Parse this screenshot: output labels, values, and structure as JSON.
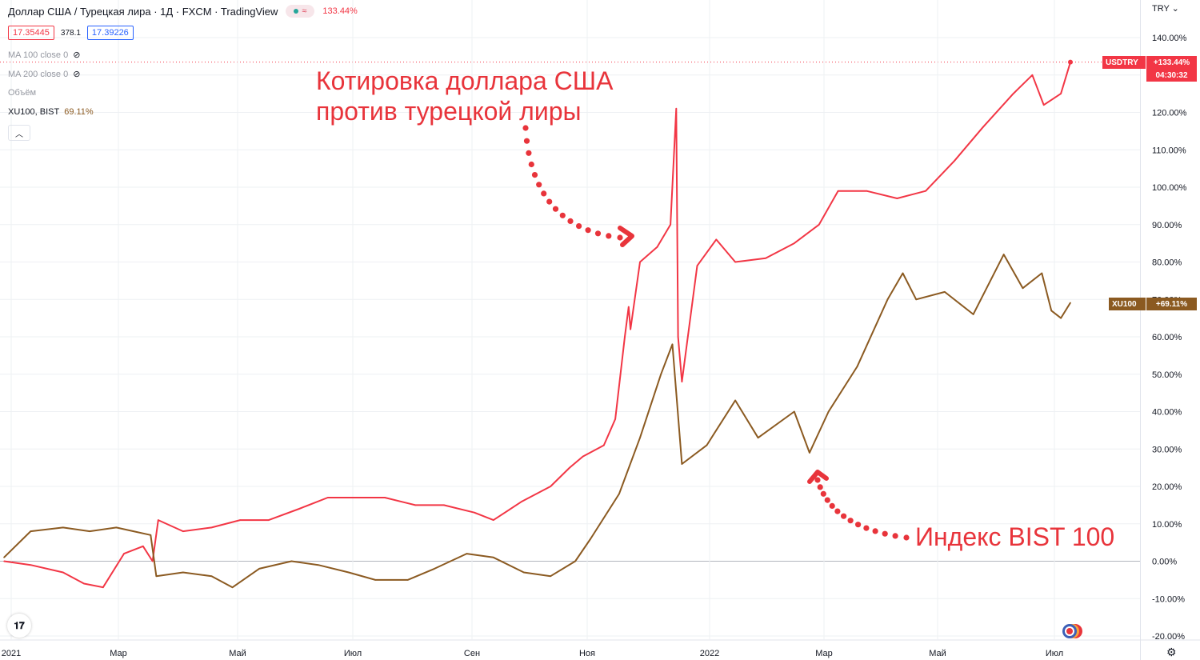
{
  "header": {
    "title": "Доллар США / Турецкая лира · 1Д · FXCM · TradingView",
    "change_pct": "133.44%",
    "bid": "17.35445",
    "spread": "378.1",
    "ask": "17.39226"
  },
  "legend": {
    "ma100": "MA 100 close 0",
    "ma200": "MA 200 close 0",
    "volume": "Объём",
    "compare_symbol": "XU100, BIST",
    "compare_value": "69.11%"
  },
  "currency": "TRY",
  "annotations": {
    "usd_title_line1": "Котировка доллара США",
    "usd_title_line2": "против турецкой лиры",
    "bist_title": "Индекс BIST 100"
  },
  "tags": {
    "usd_symbol": "USDTRY",
    "usd_value": "+133.44%",
    "usd_timer": "04:30:32",
    "xu_symbol": "XU100",
    "xu_value": "+69.11%"
  },
  "colors": {
    "usdtry": "#f23645",
    "xu100": "#8b5a21",
    "annotation": "#e8343b",
    "grid": "#eef0f3"
  },
  "icons": [
    "eye-off-icon",
    "chevron-up-icon",
    "tradingview-logo-icon",
    "gear-icon",
    "chevron-down-icon",
    "flags-icon"
  ],
  "chart_data": {
    "type": "line",
    "y_unit": "%",
    "ylim": [
      -20,
      140
    ],
    "y_ticks": [
      "140.00%",
      "130.00%",
      "120.00%",
      "110.00%",
      "100.00%",
      "90.00%",
      "80.00%",
      "70.00%",
      "60.00%",
      "50.00%",
      "40.00%",
      "30.00%",
      "20.00%",
      "10.00%",
      "0.00%",
      "-10.00%",
      "-20.00%"
    ],
    "x_ticks": [
      "2021",
      "Мар",
      "Май",
      "Июл",
      "Сен",
      "Ноя",
      "2022",
      "Мар",
      "Май",
      "Июл"
    ],
    "grid": true,
    "series": [
      {
        "name": "USDTRY",
        "points": [
          [
            "2021-01-01",
            0
          ],
          [
            "2021-01-15",
            -1
          ],
          [
            "2021-02-01",
            -3
          ],
          [
            "2021-02-12",
            -6
          ],
          [
            "2021-02-22",
            -7
          ],
          [
            "2021-03-05",
            2
          ],
          [
            "2021-03-15",
            4
          ],
          [
            "2021-03-20",
            0
          ],
          [
            "2021-03-23",
            11
          ],
          [
            "2021-04-05",
            8
          ],
          [
            "2021-04-20",
            9
          ],
          [
            "2021-05-05",
            11
          ],
          [
            "2021-05-20",
            11
          ],
          [
            "2021-06-05",
            14
          ],
          [
            "2021-06-20",
            17
          ],
          [
            "2021-07-05",
            17
          ],
          [
            "2021-07-20",
            17
          ],
          [
            "2021-08-05",
            15
          ],
          [
            "2021-08-20",
            15
          ],
          [
            "2021-09-05",
            13
          ],
          [
            "2021-09-15",
            11
          ],
          [
            "2021-09-30",
            16
          ],
          [
            "2021-10-15",
            20
          ],
          [
            "2021-10-25",
            25
          ],
          [
            "2021-11-01",
            28
          ],
          [
            "2021-11-12",
            31
          ],
          [
            "2021-11-18",
            38
          ],
          [
            "2021-11-23",
            60
          ],
          [
            "2021-11-25",
            68
          ],
          [
            "2021-11-26",
            62
          ],
          [
            "2021-12-01",
            80
          ],
          [
            "2021-12-10",
            84
          ],
          [
            "2021-12-17",
            90
          ],
          [
            "2021-12-20",
            121
          ],
          [
            "2021-12-21",
            60
          ],
          [
            "2021-12-23",
            48
          ],
          [
            "2021-12-31",
            79
          ],
          [
            "2022-01-10",
            86
          ],
          [
            "2022-01-20",
            80
          ],
          [
            "2022-02-05",
            81
          ],
          [
            "2022-02-20",
            85
          ],
          [
            "2022-03-05",
            90
          ],
          [
            "2022-03-15",
            99
          ],
          [
            "2022-03-30",
            99
          ],
          [
            "2022-04-15",
            97
          ],
          [
            "2022-04-30",
            99
          ],
          [
            "2022-05-15",
            107
          ],
          [
            "2022-05-30",
            116
          ],
          [
            "2022-06-15",
            125
          ],
          [
            "2022-06-25",
            130
          ],
          [
            "2022-07-01",
            122
          ],
          [
            "2022-07-10",
            125
          ],
          [
            "2022-07-15",
            133.44
          ]
        ]
      },
      {
        "name": "XU100",
        "points": [
          [
            "2021-01-01",
            1
          ],
          [
            "2021-01-15",
            8
          ],
          [
            "2021-02-01",
            9
          ],
          [
            "2021-02-15",
            8
          ],
          [
            "2021-03-01",
            9
          ],
          [
            "2021-03-10",
            8
          ],
          [
            "2021-03-19",
            7
          ],
          [
            "2021-03-22",
            -4
          ],
          [
            "2021-04-05",
            -3
          ],
          [
            "2021-04-20",
            -4
          ],
          [
            "2021-05-01",
            -7
          ],
          [
            "2021-05-15",
            -2
          ],
          [
            "2021-06-01",
            0
          ],
          [
            "2021-06-15",
            -1
          ],
          [
            "2021-07-01",
            -3
          ],
          [
            "2021-07-15",
            -5
          ],
          [
            "2021-08-01",
            -5
          ],
          [
            "2021-08-15",
            -2
          ],
          [
            "2021-09-01",
            2
          ],
          [
            "2021-09-15",
            1
          ],
          [
            "2021-10-01",
            -3
          ],
          [
            "2021-10-15",
            -4
          ],
          [
            "2021-10-28",
            0
          ],
          [
            "2021-11-05",
            6
          ],
          [
            "2021-11-20",
            18
          ],
          [
            "2021-12-01",
            33
          ],
          [
            "2021-12-12",
            50
          ],
          [
            "2021-12-18",
            58
          ],
          [
            "2021-12-23",
            26
          ],
          [
            "2022-01-05",
            31
          ],
          [
            "2022-01-20",
            43
          ],
          [
            "2022-02-01",
            33
          ],
          [
            "2022-02-20",
            40
          ],
          [
            "2022-02-28",
            29
          ],
          [
            "2022-03-10",
            40
          ],
          [
            "2022-03-25",
            52
          ],
          [
            "2022-04-10",
            70
          ],
          [
            "2022-04-18",
            77
          ],
          [
            "2022-04-25",
            70
          ],
          [
            "2022-05-10",
            72
          ],
          [
            "2022-05-25",
            66
          ],
          [
            "2022-06-10",
            82
          ],
          [
            "2022-06-20",
            73
          ],
          [
            "2022-06-30",
            77
          ],
          [
            "2022-07-05",
            67
          ],
          [
            "2022-07-10",
            65
          ],
          [
            "2022-07-15",
            69.11
          ]
        ]
      }
    ]
  }
}
